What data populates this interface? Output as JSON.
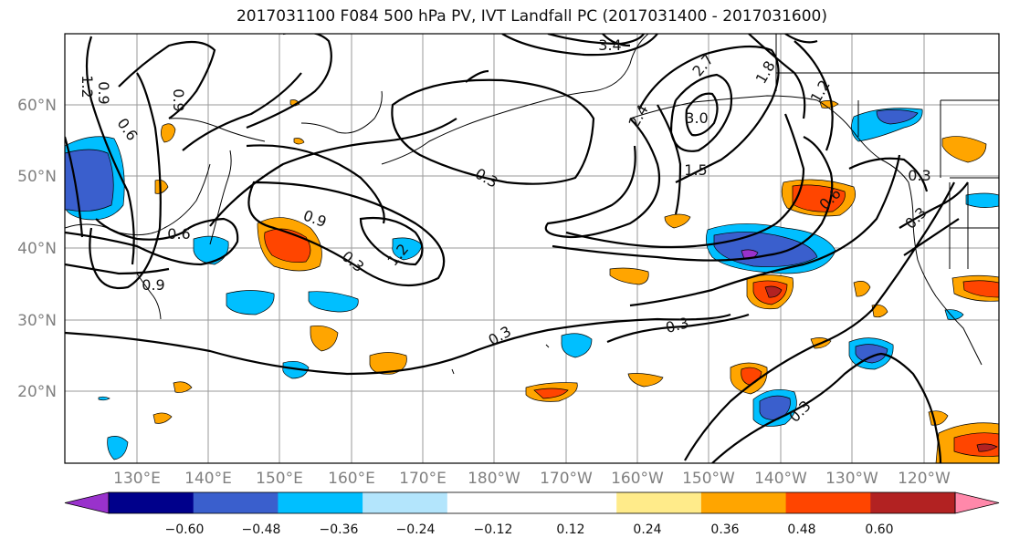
{
  "title": "2017031100 F084 500 hPa PV, IVT Landfall PC (2017031400 - 2017031600)",
  "lat_labels": [
    "60°N",
    "50°N",
    "40°N",
    "30°N",
    "20°N"
  ],
  "lon_labels": [
    "130°E",
    "140°E",
    "150°E",
    "160°E",
    "170°E",
    "180°W",
    "170°W",
    "160°W",
    "150°W",
    "140°W",
    "130°W",
    "120°W"
  ],
  "colorbar": {
    "colors": [
      "#9932cc",
      "#00008b",
      "#3a5fcd",
      "#00bfff",
      "#b3e5fc",
      "#ffffff",
      "#ffffff",
      "#ffeb8a",
      "#ffa500",
      "#ff4500",
      "#b22222",
      "#ff88aa"
    ],
    "tick_labels": [
      "−0.60",
      "−0.48",
      "−0.36",
      "−0.24",
      "−0.12",
      "0.12",
      "0.24",
      "0.36",
      "0.48",
      "0.60"
    ]
  },
  "contour_labels": [
    "0.3",
    "0.6",
    "0.9",
    "1.2",
    "1.5",
    "1.8",
    "2.4",
    "2.7",
    "3.0",
    "3.4"
  ]
}
